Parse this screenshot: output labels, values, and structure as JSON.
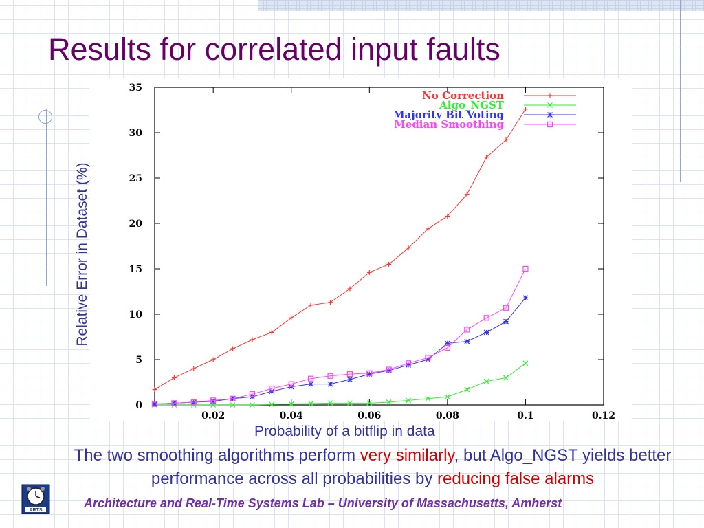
{
  "slide": {
    "title": "Results for correlated input faults",
    "caption": {
      "part1": "The two smoothing algorithms perform ",
      "highlight1": "very similarly",
      "part2": ", but Algo_NGST yields better performance across all probabilities by ",
      "highlight2": "reducing false alarms"
    },
    "footer": "Architecture and Real-Time Systems Lab – University of Massachusetts, Amherst",
    "logo_icon": "arts-clock-logo-icon",
    "logo_text": "ARTS"
  },
  "chart_data": {
    "type": "line",
    "title": "",
    "xlabel": "Probability of a bitflip in data",
    "ylabel": "Relative Error in Dataset (%)",
    "xlim": [
      0.005,
      0.12
    ],
    "ylim": [
      0,
      35
    ],
    "xticks": [
      0.02,
      0.04,
      0.06,
      0.08,
      0.1,
      0.12
    ],
    "xtick_labels": [
      "0.02",
      "0.04",
      "0.06",
      "0.08",
      "0.1",
      "0.12"
    ],
    "yticks": [
      0,
      5,
      10,
      15,
      20,
      25,
      30,
      35
    ],
    "ytick_labels": [
      "0",
      "5",
      "10",
      "15",
      "20",
      "25",
      "30",
      "35"
    ],
    "legend_position": "top-right",
    "grid": false,
    "x": [
      0.005,
      0.01,
      0.015,
      0.02,
      0.025,
      0.03,
      0.035,
      0.04,
      0.045,
      0.05,
      0.055,
      0.06,
      0.065,
      0.07,
      0.075,
      0.08,
      0.085,
      0.09,
      0.095,
      0.1
    ],
    "series": [
      {
        "name": "No Correction",
        "color": "#ff3333",
        "marker": "plus",
        "values": [
          1.7,
          3.0,
          4.0,
          5.0,
          6.2,
          7.2,
          8.0,
          9.6,
          11.0,
          11.3,
          12.8,
          14.6,
          15.5,
          17.3,
          19.4,
          20.8,
          23.2,
          27.3,
          29.2,
          32.6
        ]
      },
      {
        "name": "Algo_NGST",
        "color": "#33ee33",
        "marker": "x",
        "values": [
          0.0,
          0.0,
          0.0,
          0.0,
          0.0,
          0.0,
          0.05,
          0.1,
          0.15,
          0.2,
          0.2,
          0.2,
          0.3,
          0.5,
          0.7,
          0.9,
          1.7,
          2.6,
          3.0,
          4.6
        ]
      },
      {
        "name": "Majority Bit Voting",
        "color": "#3333ee",
        "marker": "star",
        "values": [
          0.1,
          0.2,
          0.3,
          0.4,
          0.7,
          0.9,
          1.5,
          2.0,
          2.3,
          2.3,
          2.8,
          3.4,
          3.8,
          4.4,
          5.0,
          6.8,
          7.0,
          8.0,
          9.2,
          11.8
        ]
      },
      {
        "name": "Median Smoothing",
        "color": "#ff44ff",
        "marker": "square",
        "values": [
          0.1,
          0.2,
          0.3,
          0.5,
          0.7,
          1.2,
          1.8,
          2.3,
          2.9,
          3.2,
          3.4,
          3.5,
          3.9,
          4.6,
          5.2,
          6.3,
          8.3,
          9.6,
          10.7,
          15.0
        ]
      }
    ]
  }
}
